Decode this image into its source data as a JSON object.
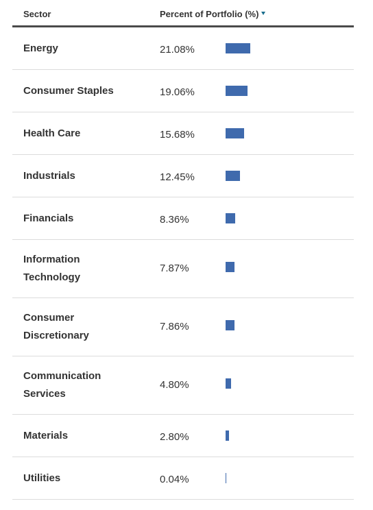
{
  "table": {
    "header": {
      "sector": "Sector",
      "percent": "Percent of Portfolio (%)"
    },
    "rows": [
      {
        "sector": "Energy",
        "percent_label": "21.08%",
        "percent": 21.08
      },
      {
        "sector": "Consumer Staples",
        "percent_label": "19.06%",
        "percent": 19.06
      },
      {
        "sector": "Health Care",
        "percent_label": "15.68%",
        "percent": 15.68
      },
      {
        "sector": "Industrials",
        "percent_label": "12.45%",
        "percent": 12.45
      },
      {
        "sector": "Financials",
        "percent_label": "8.36%",
        "percent": 8.36
      },
      {
        "sector": "Information Technology",
        "percent_label": "7.87%",
        "percent": 7.87
      },
      {
        "sector": "Consumer Discretionary",
        "percent_label": "7.86%",
        "percent": 7.86
      },
      {
        "sector": "Communication Services",
        "percent_label": "4.80%",
        "percent": 4.8
      },
      {
        "sector": "Materials",
        "percent_label": "2.80%",
        "percent": 2.8
      },
      {
        "sector": "Utilities",
        "percent_label": "0.04%",
        "percent": 0.04
      }
    ]
  },
  "colors": {
    "bar": "#3f6aad",
    "sort_indicator": "#1a6e8e",
    "header_rule": "#4a4a4a",
    "row_rule": "#dcdcdc"
  },
  "icons": {
    "sort": "sort-descending-icon"
  }
}
